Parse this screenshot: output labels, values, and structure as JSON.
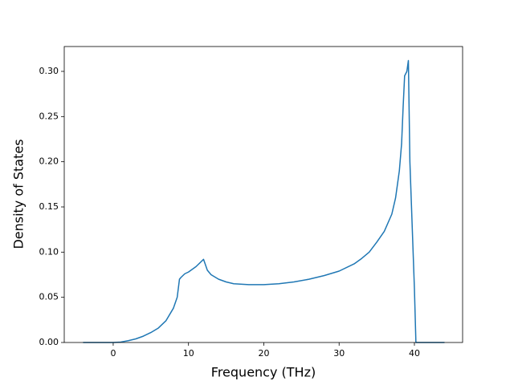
{
  "chart_data": {
    "type": "line",
    "xlabel": "Frequency (THz)",
    "ylabel": "Density of States",
    "x": [
      -4,
      -3,
      -2,
      -1,
      0,
      1,
      2,
      3,
      4,
      5,
      6,
      7,
      8,
      8.5,
      8.8,
      9,
      9.5,
      10,
      11,
      12,
      12.5,
      13,
      14,
      15,
      16,
      18,
      20,
      22,
      24,
      26,
      28,
      30,
      32,
      33,
      34,
      35,
      36,
      37,
      37.5,
      38,
      38.3,
      38.5,
      38.7,
      39,
      39.2,
      39.4,
      40,
      40.2,
      41,
      44
    ],
    "series": [
      {
        "color": "#1f77b4",
        "values": [
          0,
          0,
          0,
          0,
          0,
          0.0005,
          0.002,
          0.004,
          0.007,
          0.011,
          0.016,
          0.024,
          0.038,
          0.05,
          0.07,
          0.072,
          0.076,
          0.078,
          0.084,
          0.092,
          0.08,
          0.075,
          0.07,
          0.067,
          0.065,
          0.064,
          0.064,
          0.065,
          0.067,
          0.07,
          0.074,
          0.079,
          0.087,
          0.093,
          0.1,
          0.111,
          0.123,
          0.142,
          0.16,
          0.19,
          0.22,
          0.26,
          0.295,
          0.3,
          0.312,
          0.2,
          0.06,
          0,
          0,
          0
        ]
      }
    ],
    "xlim": [
      -6.5,
      46.4
    ],
    "ylim": [
      0,
      0.3275
    ],
    "xticks": [
      0,
      10,
      20,
      30,
      40
    ],
    "yticks": [
      {
        "value": 0,
        "label": "0.00"
      },
      0.05,
      {
        "value": 0.1,
        "label": "0.10"
      },
      0.15,
      {
        "value": 0.2,
        "label": "0.20"
      },
      0.25,
      {
        "value": 0.3,
        "label": "0.30"
      }
    ],
    "grid": false
  }
}
